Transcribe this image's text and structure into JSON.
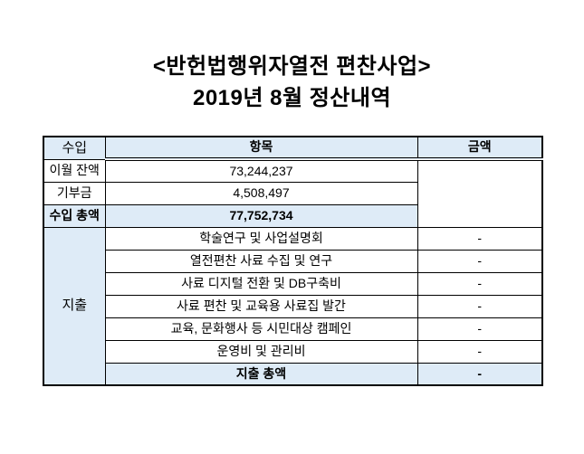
{
  "title": {
    "line1": "<반헌법행위자열전 편찬사업>",
    "line2": "2019년 8월 정산내역"
  },
  "table": {
    "col_item_header": "항목",
    "col_amount_header": "금액",
    "income": {
      "label": "수입",
      "rows": [
        {
          "item": "이월 잔액",
          "amount": "73,244,237"
        },
        {
          "item": "기부금",
          "amount": "4,508,497"
        },
        {
          "item": "수입 총액",
          "amount": "77,752,734"
        }
      ]
    },
    "expense": {
      "label": "지출",
      "rows": [
        {
          "item": "학술연구 및 사업설명회",
          "amount": "-"
        },
        {
          "item": "열전편찬 사료 수집 및 연구",
          "amount": "-"
        },
        {
          "item": "사료 디지털 전환 및 DB구축비",
          "amount": "-"
        },
        {
          "item": "사료 편찬 및 교육용 사료집 발간",
          "amount": "-"
        },
        {
          "item": "교육, 문화행사 등 시민대상 캠페인",
          "amount": "-"
        },
        {
          "item": "운영비 및 관리비",
          "amount": "-"
        },
        {
          "item": "지출 총액",
          "amount": "-"
        }
      ]
    },
    "colors": {
      "highlight_bg": "#DEEBF7",
      "border": "#000000"
    }
  }
}
